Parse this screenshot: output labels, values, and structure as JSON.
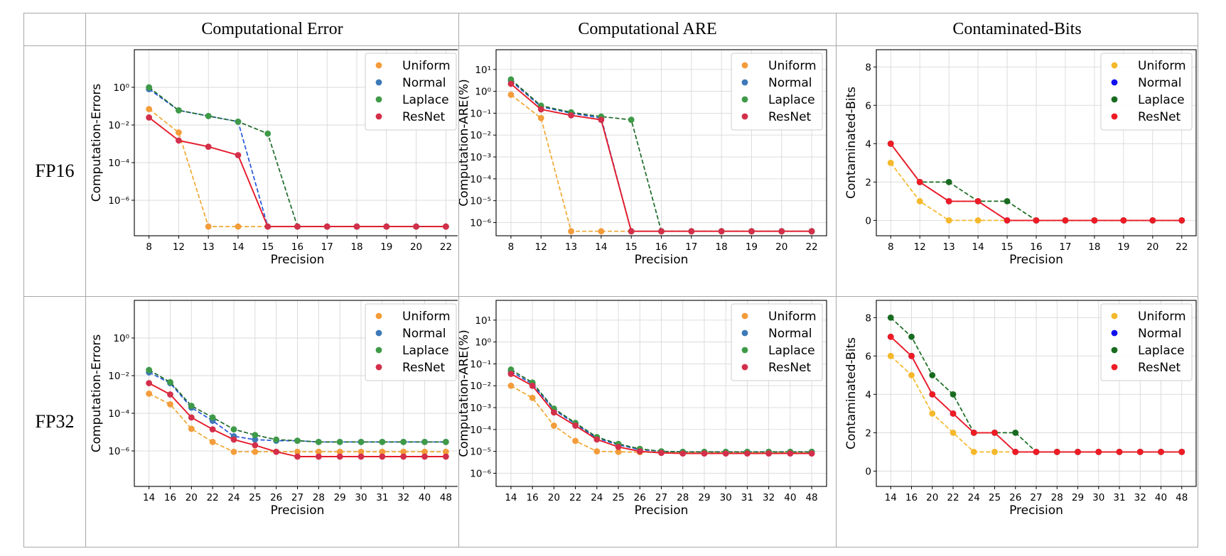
{
  "column_headers": [
    "Computational Error",
    "Computational ARE",
    "Contaminated-Bits"
  ],
  "row_headers": [
    "FP16",
    "FP32"
  ],
  "chart_data": [
    {
      "type": "line",
      "row": "FP16",
      "column": "Computational Error",
      "xlabel": "Precision",
      "ylabel": "Computation-Errors",
      "yscale": "log",
      "ylim": [
        1.3e-08,
        100
      ],
      "yticks": [
        1e-06,
        0.0001,
        0.01,
        1
      ],
      "ytick_labels": [
        "10⁻⁶",
        "10⁻⁴",
        "10⁻²",
        "10⁰"
      ],
      "categories": [
        "8",
        "12",
        "13",
        "14",
        "15",
        "16",
        "17",
        "18",
        "19",
        "20",
        "22"
      ],
      "legend_position": "top-right",
      "series": [
        {
          "name": "Uniform",
          "color": "#f0a830",
          "marker": "#f39c3a",
          "dash": true,
          "values": [
            0.07,
            0.004,
            4e-08,
            4e-08,
            4e-08,
            4e-08,
            4e-08,
            4e-08,
            4e-08,
            4e-08,
            4e-08
          ]
        },
        {
          "name": "Normal",
          "color": "#2255dd",
          "marker": "#3d79b8",
          "dash": true,
          "values": [
            0.8,
            0.06,
            0.03,
            0.015,
            4e-08,
            4e-08,
            4e-08,
            4e-08,
            4e-08,
            4e-08,
            4e-08
          ]
        },
        {
          "name": "Laplace",
          "color": "#1e6b2a",
          "marker": "#3f9a48",
          "dash": true,
          "values": [
            1.0,
            0.06,
            0.03,
            0.015,
            0.0035,
            4e-08,
            4e-08,
            4e-08,
            4e-08,
            4e-08,
            4e-08
          ]
        },
        {
          "name": "ResNet",
          "color": "#e41a2a",
          "marker": "#d32f4a",
          "dash": false,
          "values": [
            0.025,
            0.0015,
            0.0007,
            0.00025,
            4e-08,
            4e-08,
            4e-08,
            4e-08,
            4e-08,
            4e-08,
            4e-08
          ]
        }
      ]
    },
    {
      "type": "line",
      "row": "FP16",
      "column": "Computational ARE",
      "xlabel": "Precision",
      "ylabel": "Computation-ARE(%)",
      "yscale": "log",
      "ylim": [
        2.5e-07,
        80
      ],
      "yticks": [
        1e-06,
        1e-05,
        0.0001,
        0.001,
        0.01,
        0.1,
        1,
        10
      ],
      "ytick_labels": [
        "10⁻⁶",
        "10⁻⁵",
        "10⁻⁴",
        "10⁻³",
        "10⁻²",
        "10⁻¹",
        "10⁰",
        "10¹"
      ],
      "categories": [
        "8",
        "12",
        "13",
        "14",
        "15",
        "16",
        "17",
        "18",
        "19",
        "20",
        "22"
      ],
      "legend_position": "top-right",
      "series": [
        {
          "name": "Uniform",
          "color": "#f0a830",
          "marker": "#f39c3a",
          "dash": true,
          "values": [
            0.7,
            0.06,
            4e-07,
            4e-07,
            4e-07,
            4e-07,
            4e-07,
            4e-07,
            4e-07,
            4e-07,
            4e-07
          ]
        },
        {
          "name": "Normal",
          "color": "#2255dd",
          "marker": "#3d79b8",
          "dash": true,
          "values": [
            3.0,
            0.2,
            0.1,
            0.06,
            4e-07,
            4e-07,
            4e-07,
            4e-07,
            4e-07,
            4e-07,
            4e-07
          ]
        },
        {
          "name": "Laplace",
          "color": "#1e6b2a",
          "marker": "#3f9a48",
          "dash": true,
          "values": [
            3.5,
            0.22,
            0.11,
            0.07,
            0.05,
            4e-07,
            4e-07,
            4e-07,
            4e-07,
            4e-07,
            4e-07
          ]
        },
        {
          "name": "ResNet",
          "color": "#e41a2a",
          "marker": "#d32f4a",
          "dash": false,
          "values": [
            2.2,
            0.15,
            0.08,
            0.05,
            4e-07,
            4e-07,
            4e-07,
            4e-07,
            4e-07,
            4e-07,
            4e-07
          ]
        }
      ]
    },
    {
      "type": "line",
      "row": "FP16",
      "column": "Contaminated-Bits",
      "xlabel": "Precision",
      "ylabel": "Contaminated-Bits",
      "yscale": "linear",
      "ylim": [
        -0.8,
        8.9
      ],
      "yticks": [
        0,
        2,
        4,
        6,
        8
      ],
      "ytick_labels": [
        "0",
        "2",
        "4",
        "6",
        "8"
      ],
      "categories": [
        "8",
        "12",
        "13",
        "14",
        "15",
        "16",
        "17",
        "18",
        "19",
        "20",
        "22"
      ],
      "legend_position": "top-right",
      "series": [
        {
          "name": "Uniform",
          "color": "#f5b82a",
          "marker": "#f5b82a",
          "dash": true,
          "values": [
            3,
            1,
            0,
            0,
            0,
            0,
            0,
            0,
            0,
            0,
            0
          ]
        },
        {
          "name": "Normal",
          "color": "#1010ee",
          "marker": "#1010ee",
          "dash": true,
          "values": [
            4,
            2,
            1,
            1,
            0,
            0,
            0,
            0,
            0,
            0,
            0
          ]
        },
        {
          "name": "Laplace",
          "color": "#186b1f",
          "marker": "#186b1f",
          "dash": true,
          "values": [
            4,
            2,
            2,
            1,
            1,
            0,
            0,
            0,
            0,
            0,
            0
          ]
        },
        {
          "name": "ResNet",
          "color": "#ee1b24",
          "marker": "#ee1b24",
          "dash": false,
          "values": [
            4,
            2,
            1,
            1,
            0,
            0,
            0,
            0,
            0,
            0,
            0
          ]
        }
      ]
    },
    {
      "type": "line",
      "row": "FP32",
      "column": "Computational Error",
      "xlabel": "Precision",
      "ylabel": "Computation-Errors",
      "yscale": "log",
      "ylim": [
        1.3e-08,
        100
      ],
      "yticks": [
        1e-06,
        0.0001,
        0.01,
        1
      ],
      "ytick_labels": [
        "10⁻⁶",
        "10⁻⁴",
        "10⁻²",
        "10⁰"
      ],
      "categories": [
        "14",
        "16",
        "20",
        "22",
        "24",
        "25",
        "26",
        "27",
        "28",
        "29",
        "30",
        "31",
        "32",
        "40",
        "48"
      ],
      "legend_position": "top-right",
      "series": [
        {
          "name": "Uniform",
          "color": "#f0a830",
          "marker": "#f39c3a",
          "dash": true,
          "values": [
            0.0011,
            0.0003,
            1.5e-05,
            3e-06,
            9e-07,
            9e-07,
            9e-07,
            9e-07,
            9e-07,
            9e-07,
            9e-07,
            9e-07,
            9e-07,
            9e-07,
            9e-07
          ]
        },
        {
          "name": "Normal",
          "color": "#2255dd",
          "marker": "#3d79b8",
          "dash": true,
          "values": [
            0.015,
            0.004,
            0.0002,
            4e-05,
            6e-06,
            4e-06,
            3.5e-06,
            3.5e-06,
            3e-06,
            3e-06,
            3e-06,
            3e-06,
            3e-06,
            3e-06,
            3e-06
          ]
        },
        {
          "name": "Laplace",
          "color": "#1e6b2a",
          "marker": "#3f9a48",
          "dash": true,
          "values": [
            0.02,
            0.0045,
            0.00025,
            6e-05,
            1.4e-05,
            7e-06,
            4e-06,
            3.5e-06,
            3e-06,
            3e-06,
            3e-06,
            3e-06,
            3e-06,
            3e-06,
            3e-06
          ]
        },
        {
          "name": "ResNet",
          "color": "#e41a2a",
          "marker": "#d32f4a",
          "dash": false,
          "values": [
            0.004,
            0.001,
            6e-05,
            1.4e-05,
            4e-06,
            2e-06,
            9e-07,
            5e-07,
            5e-07,
            5e-07,
            5e-07,
            5e-07,
            5e-07,
            5e-07,
            5e-07
          ]
        }
      ]
    },
    {
      "type": "line",
      "row": "FP32",
      "column": "Computational ARE",
      "xlabel": "Precision",
      "ylabel": "Computation-ARE(%)",
      "yscale": "log",
      "ylim": [
        2.5e-07,
        80
      ],
      "yticks": [
        1e-06,
        1e-05,
        0.0001,
        0.001,
        0.01,
        0.1,
        1,
        10
      ],
      "ytick_labels": [
        "10⁻⁶",
        "10⁻⁵",
        "10⁻⁴",
        "10⁻³",
        "10⁻²",
        "10⁻¹",
        "10⁰",
        "10¹"
      ],
      "categories": [
        "14",
        "16",
        "20",
        "22",
        "24",
        "25",
        "26",
        "27",
        "28",
        "29",
        "30",
        "31",
        "32",
        "40",
        "48"
      ],
      "legend_position": "top-right",
      "series": [
        {
          "name": "Uniform",
          "color": "#f0a830",
          "marker": "#f39c3a",
          "dash": true,
          "values": [
            0.01,
            0.0028,
            0.00015,
            3e-05,
            1e-05,
            9.5e-06,
            9.2e-06,
            9e-06,
            9e-06,
            9e-06,
            9e-06,
            9e-06,
            9e-06,
            9e-06,
            9e-06
          ]
        },
        {
          "name": "Normal",
          "color": "#2255dd",
          "marker": "#3d79b8",
          "dash": true,
          "values": [
            0.045,
            0.012,
            0.0008,
            0.00018,
            4e-05,
            2e-05,
            1.2e-05,
            1e-05,
            9.5e-06,
            9.5e-06,
            9.5e-06,
            9.5e-06,
            9.5e-06,
            9.5e-06,
            9.5e-06
          ]
        },
        {
          "name": "Laplace",
          "color": "#1e6b2a",
          "marker": "#3f9a48",
          "dash": true,
          "values": [
            0.055,
            0.014,
            0.0009,
            0.0002,
            4.5e-05,
            2.2e-05,
            1.3e-05,
            1e-05,
            9.5e-06,
            9.5e-06,
            9.5e-06,
            9.5e-06,
            9.5e-06,
            9.5e-06,
            9.5e-06
          ]
        },
        {
          "name": "ResNet",
          "color": "#e41a2a",
          "marker": "#d32f4a",
          "dash": false,
          "values": [
            0.035,
            0.01,
            0.0006,
            0.00015,
            3.5e-05,
            1.6e-05,
            1e-05,
            8.5e-06,
            8e-06,
            8e-06,
            8e-06,
            8e-06,
            8e-06,
            8e-06,
            8e-06
          ]
        }
      ]
    },
    {
      "type": "line",
      "row": "FP32",
      "column": "Contaminated-Bits",
      "xlabel": "Precision",
      "ylabel": "Contaminated-Bits",
      "yscale": "linear",
      "ylim": [
        -0.8,
        8.9
      ],
      "yticks": [
        0,
        2,
        4,
        6,
        8
      ],
      "ytick_labels": [
        "0",
        "2",
        "4",
        "6",
        "8"
      ],
      "categories": [
        "14",
        "16",
        "20",
        "22",
        "24",
        "25",
        "26",
        "27",
        "28",
        "29",
        "30",
        "31",
        "32",
        "40",
        "48"
      ],
      "legend_position": "top-right",
      "series": [
        {
          "name": "Uniform",
          "color": "#f5b82a",
          "marker": "#f5b82a",
          "dash": true,
          "values": [
            6,
            5,
            3,
            2,
            1,
            1,
            1,
            1,
            1,
            1,
            1,
            1,
            1,
            1,
            1
          ]
        },
        {
          "name": "Normal",
          "color": "#1010ee",
          "marker": "#1010ee",
          "dash": true,
          "values": [
            7,
            6,
            4,
            3,
            2,
            2,
            1,
            1,
            1,
            1,
            1,
            1,
            1,
            1,
            1
          ]
        },
        {
          "name": "Laplace",
          "color": "#186b1f",
          "marker": "#186b1f",
          "dash": true,
          "values": [
            8,
            7,
            5,
            4,
            2,
            2,
            2,
            1,
            1,
            1,
            1,
            1,
            1,
            1,
            1
          ]
        },
        {
          "name": "ResNet",
          "color": "#ee1b24",
          "marker": "#ee1b24",
          "dash": false,
          "values": [
            7,
            6,
            4,
            3,
            2,
            2,
            1,
            1,
            1,
            1,
            1,
            1,
            1,
            1,
            1
          ]
        }
      ]
    }
  ]
}
